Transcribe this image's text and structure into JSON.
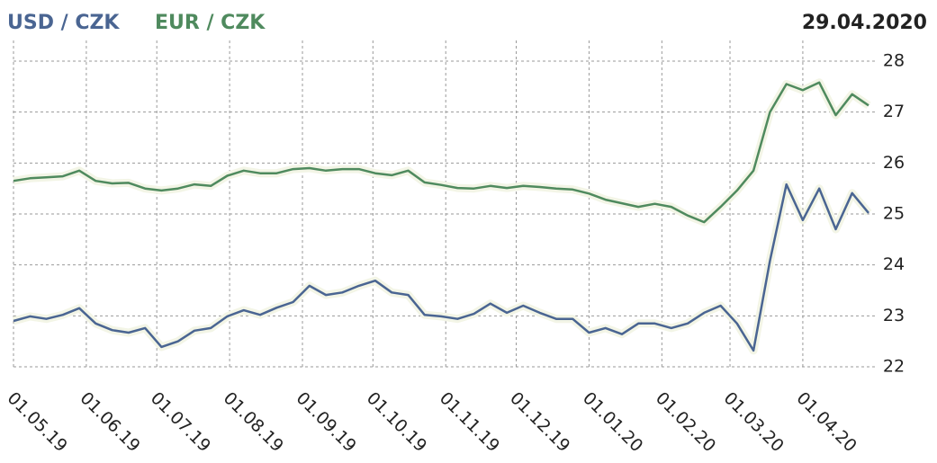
{
  "chart_data": {
    "type": "line",
    "date": "29.04.2020",
    "x": [
      "01.05.19",
      "08.05.19",
      "15.05.19",
      "22.05.19",
      "29.05.19",
      "05.06.19",
      "12.06.19",
      "19.06.19",
      "26.06.19",
      "03.07.19",
      "10.07.19",
      "17.07.19",
      "24.07.19",
      "31.07.19",
      "07.08.19",
      "14.08.19",
      "21.08.19",
      "28.08.19",
      "04.09.19",
      "11.09.19",
      "18.09.19",
      "25.09.19",
      "02.10.19",
      "09.10.19",
      "16.10.19",
      "23.10.19",
      "30.10.19",
      "06.11.19",
      "13.11.19",
      "20.11.19",
      "27.11.19",
      "04.12.19",
      "11.12.19",
      "18.12.19",
      "25.12.19",
      "01.01.20",
      "08.01.20",
      "15.01.20",
      "22.01.20",
      "29.01.20",
      "05.02.20",
      "12.02.20",
      "19.02.20",
      "26.02.20",
      "04.03.20",
      "11.03.20",
      "18.03.20",
      "25.03.20",
      "01.04.20",
      "08.04.20",
      "15.04.20",
      "22.04.20",
      "29.04.20"
    ],
    "series": [
      {
        "name": "USD / CZK",
        "color": "#4a6592",
        "values": [
          22.9,
          22.99,
          22.94,
          23.02,
          23.15,
          22.85,
          22.72,
          22.67,
          22.76,
          22.39,
          22.5,
          22.71,
          22.76,
          22.99,
          23.11,
          23.02,
          23.16,
          23.27,
          23.59,
          23.41,
          23.46,
          23.59,
          23.69,
          23.46,
          23.41,
          23.02,
          22.99,
          22.94,
          23.04,
          23.24,
          23.06,
          23.2,
          23.06,
          22.94,
          22.94,
          22.67,
          22.76,
          22.64,
          22.85,
          22.85,
          22.76,
          22.85,
          23.06,
          23.2,
          22.85,
          22.32,
          24.08,
          25.58,
          24.88,
          25.5,
          24.7,
          25.41,
          25.02
        ]
      },
      {
        "name": "EUR / CZK",
        "color": "#4f8a5e",
        "values": [
          25.65,
          25.7,
          25.72,
          25.74,
          25.85,
          25.65,
          25.6,
          25.61,
          25.5,
          25.46,
          25.5,
          25.58,
          25.55,
          25.75,
          25.85,
          25.8,
          25.8,
          25.88,
          25.9,
          25.85,
          25.88,
          25.88,
          25.8,
          25.76,
          25.85,
          25.62,
          25.57,
          25.51,
          25.5,
          25.55,
          25.51,
          25.55,
          25.53,
          25.5,
          25.48,
          25.4,
          25.28,
          25.21,
          25.14,
          25.2,
          25.14,
          24.97,
          24.84,
          25.14,
          25.46,
          25.85,
          27.0,
          27.55,
          27.43,
          27.58,
          26.94,
          27.35,
          27.13
        ]
      }
    ],
    "xlim": [
      "01.05.19",
      "29.04.20"
    ],
    "xticks": [
      "01.05.19",
      "01.06.19",
      "01.07.19",
      "01.08.19",
      "01.09.19",
      "01.10.19",
      "01.11.19",
      "01.12.19",
      "01.01.20",
      "01.02.20",
      "01.03.20",
      "01.04.20"
    ],
    "ylim": [
      22,
      28
    ],
    "yticks": [
      22,
      23,
      24,
      25,
      26,
      27,
      28
    ],
    "grid": true
  }
}
